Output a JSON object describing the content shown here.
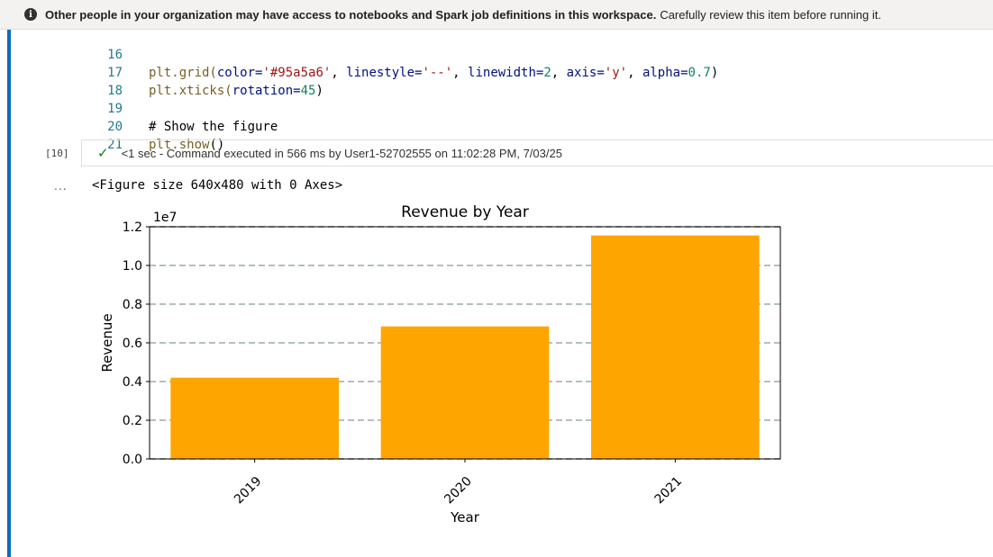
{
  "banner": {
    "bold_text": "Other people in your organization may have access to notebooks and Spark job definitions in this workspace.",
    "normal_text": "Carefully review this item before running it.",
    "icon": "info-icon"
  },
  "code_lines": [
    {
      "num": "16"
    },
    {
      "num": "17"
    },
    {
      "num": "18"
    },
    {
      "num": "19"
    },
    {
      "num": "20"
    },
    {
      "num": "21"
    }
  ],
  "code": {
    "l16": {
      "fn": "plt.grid(",
      "p1": "color=",
      "s1": "'#95a5a6'",
      "c1": ", ",
      "p2": "linestyle=",
      "s2": "'--'",
      "c2": ", ",
      "p3": "linewidth=",
      "n1": "2",
      "c3": ", ",
      "p4": "axis=",
      "s3": "'y'",
      "c4": ", ",
      "p5": "alpha=",
      "n2": "0.7",
      "end": ")"
    },
    "l17": {
      "fn": "plt.xticks(",
      "p1": "rotation=",
      "n1": "45",
      "end": ")"
    },
    "l19": {
      "comment": "# Show the figure"
    },
    "l20": {
      "fn": "plt.show",
      "end": "()"
    }
  },
  "cell": {
    "exec_count": "[10]",
    "status_icon": "check-icon",
    "status_text": "<1 sec - Command executed in 566 ms by User1-52702555 on 11:02:28 PM, 7/03/25",
    "more": "...",
    "figure_text": "<Figure size 640x480 with 0 Axes>"
  },
  "colors": {
    "bar": "#ffa500",
    "grid": "#95a5a6",
    "accent": "#0f6cbd",
    "success": "#107c10"
  },
  "chart_data": {
    "type": "bar",
    "title": "Revenue by Year",
    "xlabel": "Year",
    "ylabel": "Revenue",
    "offset_label": "1e7",
    "categories": [
      "2019",
      "2020",
      "2021"
    ],
    "values": [
      4200000,
      6850000,
      11550000
    ],
    "ylim": [
      0,
      12000000
    ],
    "yticks": [
      0,
      2000000,
      4000000,
      6000000,
      8000000,
      10000000,
      12000000
    ],
    "ytick_labels": [
      "0.0",
      "0.2",
      "0.4",
      "0.6",
      "0.8",
      "1.0",
      "1.2"
    ],
    "xtick_rotation": 45,
    "grid": "y",
    "grid_linestyle": "--"
  }
}
